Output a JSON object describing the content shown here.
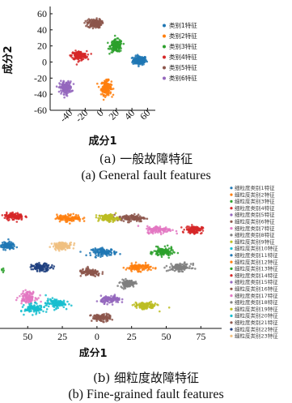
{
  "chart_data": [
    {
      "type": "scatter",
      "title": "",
      "xlabel": "成分1",
      "ylabel": "成分2",
      "xlim": [
        -65,
        70
      ],
      "ylim": [
        -60,
        65
      ],
      "xticks": [
        "-40",
        "-20",
        "0",
        "20",
        "40",
        "60"
      ],
      "yticks": [
        "60",
        "40",
        "20",
        "0",
        "-20",
        "-40",
        "-60"
      ],
      "legend_position": "right",
      "series": [
        {
          "name": "类别1特征",
          "color": "#1f77b4",
          "center": [
            50,
            2
          ],
          "spread": [
            8,
            5
          ]
        },
        {
          "name": "类别2特征",
          "color": "#ff7f0e",
          "center": [
            7,
            -32
          ],
          "spread": [
            6,
            8
          ]
        },
        {
          "name": "类别3特征",
          "color": "#2ca02c",
          "center": [
            20,
            20
          ],
          "spread": [
            7,
            7
          ]
        },
        {
          "name": "类别4特征",
          "color": "#d62728",
          "center": [
            -28,
            8
          ],
          "spread": [
            9,
            5
          ]
        },
        {
          "name": "类别5特征",
          "color": "#8c564b",
          "center": [
            -8,
            48
          ],
          "spread": [
            8,
            5
          ]
        },
        {
          "name": "类别6特征",
          "color": "#9467bd",
          "center": [
            -45,
            -32
          ],
          "spread": [
            7,
            7
          ]
        }
      ]
    },
    {
      "type": "scatter",
      "title": "",
      "xlabel": "成分1",
      "ylabel": "",
      "xlim": [
        -70,
        90
      ],
      "ylim": [
        -30,
        110
      ],
      "xticks": [
        "50",
        "25",
        "0",
        "25",
        "50",
        "75"
      ],
      "legend_position": "right",
      "series": [
        {
          "name": "细粒度类别1特征",
          "color": "#1f77b4",
          "center": [
            5,
            55
          ],
          "spread": [
            9,
            4
          ]
        },
        {
          "name": "细粒度类别2特征",
          "color": "#ff7f0e",
          "center": [
            30,
            38
          ],
          "spread": [
            9,
            4
          ]
        },
        {
          "name": "细粒度类别3特征",
          "color": "#2ca02c",
          "center": [
            48,
            55
          ],
          "spread": [
            7,
            5
          ]
        },
        {
          "name": "细粒度类别4特征",
          "color": "#d62728",
          "center": [
            70,
            80
          ],
          "spread": [
            6,
            4
          ]
        },
        {
          "name": "细粒度类别5特征",
          "color": "#9467bd",
          "center": [
            -80,
            62
          ],
          "spread": [
            6,
            4
          ]
        },
        {
          "name": "细粒度类别6特征",
          "color": "#8c564b",
          "center": [
            25,
            93
          ],
          "spread": [
            10,
            4
          ]
        },
        {
          "name": "细粒度类别7特征",
          "color": "#e377c2",
          "center": [
            45,
            80
          ],
          "spread": [
            9,
            4
          ]
        },
        {
          "name": "细粒度类别8特征",
          "color": "#7f7f7f",
          "center": [
            22,
            20
          ],
          "spread": [
            5,
            4
          ]
        },
        {
          "name": "细粒度类别9特征",
          "color": "#bcbd22",
          "center": [
            8,
            93
          ],
          "spread": [
            7,
            4
          ]
        },
        {
          "name": "细粒度类别10特征",
          "color": "#17becf",
          "center": [
            -30,
            -2
          ],
          "spread": [
            7,
            5
          ]
        },
        {
          "name": "细粒度类别11特征",
          "color": "#1f77b4",
          "center": [
            -65,
            62
          ],
          "spread": [
            6,
            4
          ]
        },
        {
          "name": "细粒度类别12特征",
          "color": "#ff7f0e",
          "center": [
            -20,
            93
          ],
          "spread": [
            9,
            4
          ]
        },
        {
          "name": "细粒度类别13特征",
          "color": "#2ca02c",
          "center": [
            -75,
            35
          ],
          "spread": [
            6,
            4
          ]
        },
        {
          "name": "细粒度类别14特征",
          "color": "#d62728",
          "center": [
            -60,
            95
          ],
          "spread": [
            7,
            4
          ]
        },
        {
          "name": "细粒度类别15特征",
          "color": "#9467bd",
          "center": [
            10,
            2
          ],
          "spread": [
            7,
            4
          ]
        },
        {
          "name": "细粒度类别16特征",
          "color": "#8c564b",
          "center": [
            -5,
            32
          ],
          "spread": [
            8,
            4
          ]
        },
        {
          "name": "细粒度类别17特征",
          "color": "#e377c2",
          "center": [
            -50,
            5
          ],
          "spread": [
            6,
            6
          ]
        },
        {
          "name": "细粒度类别18特征",
          "color": "#7f7f7f",
          "center": [
            60,
            38
          ],
          "spread": [
            8,
            4
          ]
        },
        {
          "name": "细粒度类别19特征",
          "color": "#bcbd22",
          "center": [
            35,
            -5
          ],
          "spread": [
            8,
            4
          ]
        },
        {
          "name": "细粒度类别20特征",
          "color": "#17becf",
          "center": [
            -45,
            -8
          ],
          "spread": [
            7,
            5
          ]
        },
        {
          "name": "细粒度类别21特征",
          "color": "#8c564b",
          "center": [
            3,
            -18
          ],
          "spread": [
            7,
            4
          ]
        },
        {
          "name": "细粒度类别22特征",
          "color": "#1f3f7f",
          "center": [
            -40,
            38
          ],
          "spread": [
            7,
            4
          ]
        },
        {
          "name": "细粒度类别23特征",
          "color": "#f0c080",
          "center": [
            -25,
            62
          ],
          "spread": [
            7,
            4
          ]
        }
      ]
    }
  ],
  "captions": {
    "a_cn": "(a) 一般故障特征",
    "a_en": "(a) General fault features",
    "b_cn": "(b) 细粒度故障特征",
    "b_en": "(b) Fine-grained fault features"
  }
}
